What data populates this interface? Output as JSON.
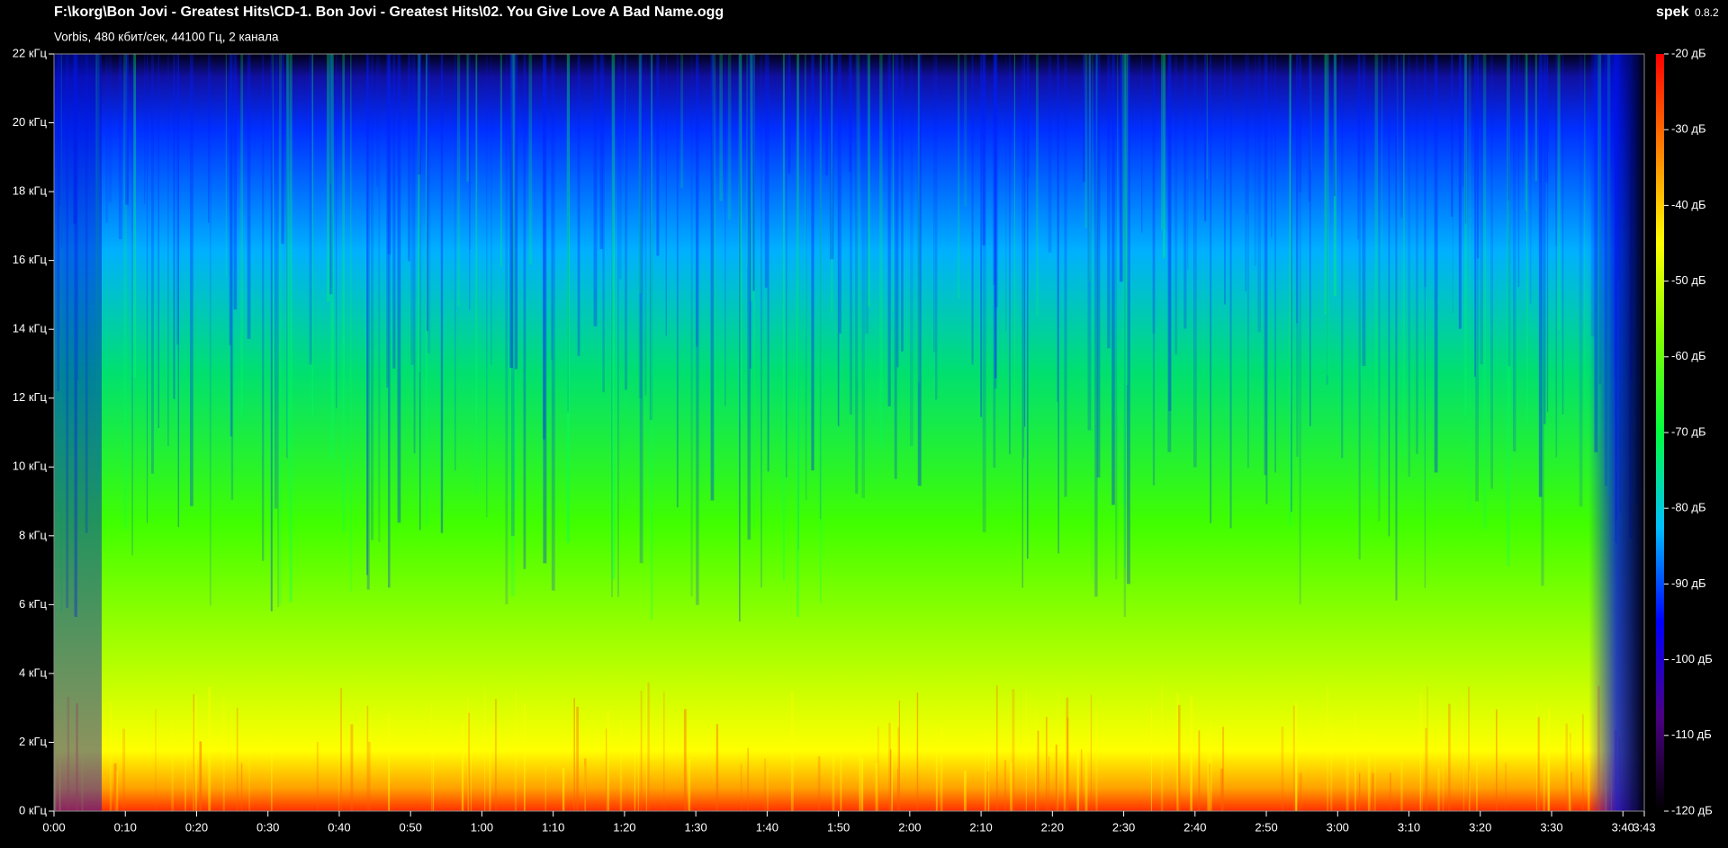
{
  "chart_data": {
    "type": "spectrogram",
    "title": "F:\\korg\\Bon Jovi - Greatest Hits\\CD-1. Bon Jovi - Greatest Hits\\02. You Give Love A Bad Name.ogg",
    "subtitle": "Vorbis, 480 кбит/сек, 44100 Гц, 2 канала",
    "app_name": "spek",
    "app_version": "0.8.2",
    "xlim": [
      0,
      223
    ],
    "xticks": [
      {
        "value": 0,
        "label": "0:00"
      },
      {
        "value": 10,
        "label": "0:10"
      },
      {
        "value": 20,
        "label": "0:20"
      },
      {
        "value": 30,
        "label": "0:30"
      },
      {
        "value": 40,
        "label": "0:40"
      },
      {
        "value": 50,
        "label": "0:50"
      },
      {
        "value": 60,
        "label": "1:00"
      },
      {
        "value": 70,
        "label": "1:10"
      },
      {
        "value": 80,
        "label": "1:20"
      },
      {
        "value": 90,
        "label": "1:30"
      },
      {
        "value": 100,
        "label": "1:40"
      },
      {
        "value": 110,
        "label": "1:50"
      },
      {
        "value": 120,
        "label": "2:00"
      },
      {
        "value": 130,
        "label": "2:10"
      },
      {
        "value": 140,
        "label": "2:20"
      },
      {
        "value": 150,
        "label": "2:30"
      },
      {
        "value": 160,
        "label": "2:40"
      },
      {
        "value": 170,
        "label": "2:50"
      },
      {
        "value": 180,
        "label": "3:00"
      },
      {
        "value": 190,
        "label": "3:10"
      },
      {
        "value": 200,
        "label": "3:20"
      },
      {
        "value": 210,
        "label": "3:30"
      },
      {
        "value": 220,
        "label": "3:40"
      },
      {
        "value": 223,
        "label": "3:43"
      }
    ],
    "ylim": [
      0,
      22
    ],
    "yticks": [
      {
        "value": 0,
        "label": "0 кГц"
      },
      {
        "value": 2,
        "label": "2 кГц"
      },
      {
        "value": 4,
        "label": "4 кГц"
      },
      {
        "value": 6,
        "label": "6 кГц"
      },
      {
        "value": 8,
        "label": "8 кГц"
      },
      {
        "value": 10,
        "label": "10 кГц"
      },
      {
        "value": 12,
        "label": "12 кГц"
      },
      {
        "value": 14,
        "label": "14 кГц"
      },
      {
        "value": 16,
        "label": "16 кГц"
      },
      {
        "value": 18,
        "label": "18 кГц"
      },
      {
        "value": 20,
        "label": "20 кГц"
      },
      {
        "value": 22,
        "label": "22 кГц"
      }
    ],
    "zlim": [
      -120,
      -20
    ],
    "zticks": [
      {
        "value": -120,
        "label": "-120 дБ"
      },
      {
        "value": -110,
        "label": "-110 дБ"
      },
      {
        "value": -100,
        "label": "-100 дБ"
      },
      {
        "value": -90,
        "label": "-90 дБ"
      },
      {
        "value": -80,
        "label": "-80 дБ"
      },
      {
        "value": -70,
        "label": "-70 дБ"
      },
      {
        "value": -60,
        "label": "-60 дБ"
      },
      {
        "value": -50,
        "label": "-50 дБ"
      },
      {
        "value": -40,
        "label": "-40 дБ"
      },
      {
        "value": -30,
        "label": "-30 дБ"
      },
      {
        "value": -20,
        "label": "-20 дБ"
      }
    ],
    "colormap": [
      "#000000",
      "#4b0082",
      "#0000ff",
      "#00c0ff",
      "#00ff40",
      "#80ff00",
      "#ffff00",
      "#ff8000",
      "#ff0000"
    ]
  }
}
